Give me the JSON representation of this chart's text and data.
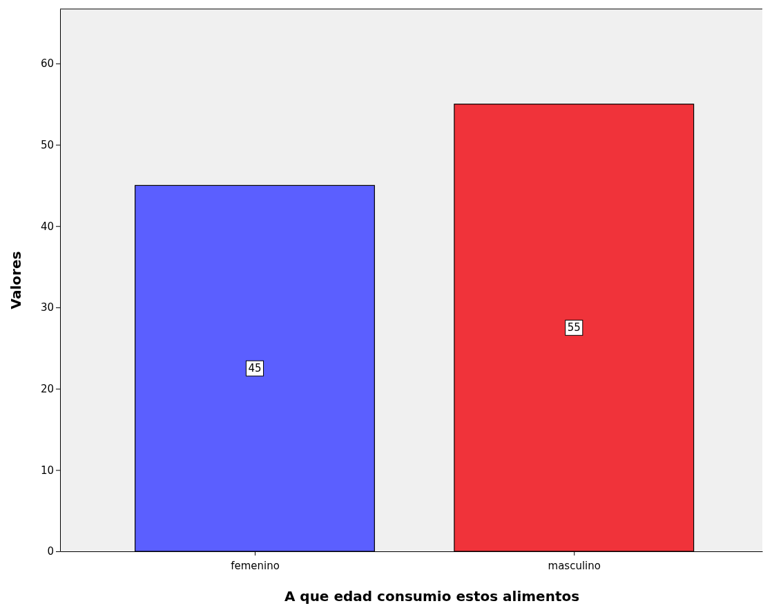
{
  "chart_data": {
    "type": "bar",
    "categories": [
      "femenino",
      "masculino"
    ],
    "values": [
      45,
      55
    ],
    "colors": [
      "#5b5fff",
      "#f0333a"
    ],
    "xlabel": "A que edad consumio estos alimentos",
    "ylabel": "Valores",
    "ylim": [
      0,
      66.7
    ],
    "yticks": [
      0,
      10,
      20,
      30,
      40,
      50,
      60
    ],
    "data_labels": true,
    "grid": false
  }
}
